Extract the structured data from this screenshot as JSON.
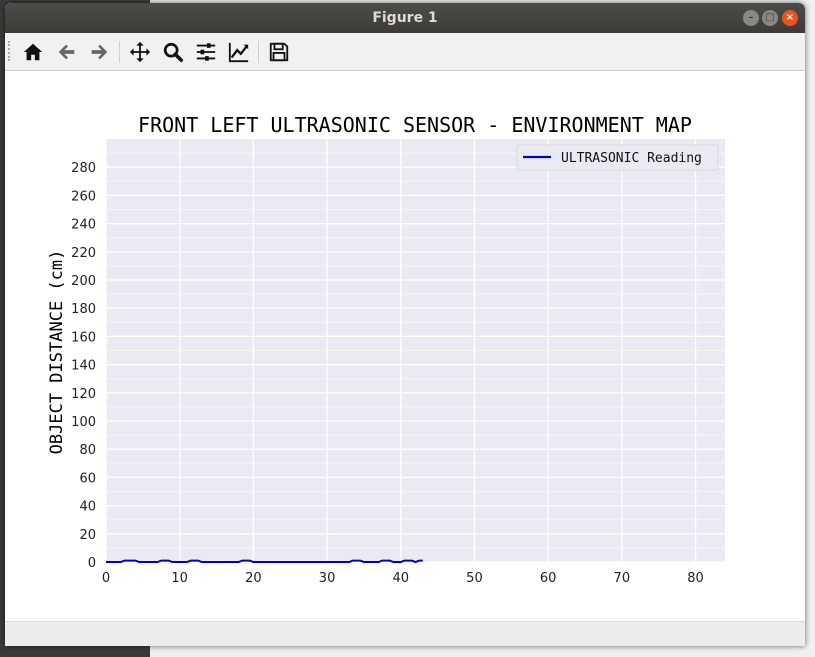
{
  "window": {
    "title": "Figure 1"
  },
  "toolbar": {
    "items": [
      {
        "name": "home-icon"
      },
      {
        "name": "back-arrow-icon"
      },
      {
        "name": "forward-arrow-icon"
      },
      {
        "name": "pan-move-icon"
      },
      {
        "name": "zoom-magnifier-icon"
      },
      {
        "name": "configure-subplots-icon"
      },
      {
        "name": "edit-axis-curves-icon"
      },
      {
        "name": "save-floppy-icon"
      }
    ]
  },
  "chart_data": {
    "type": "line",
    "title": "FRONT LEFT ULTRASONIC SENSOR - ENVIRONMENT MAP",
    "xlabel": "",
    "ylabel": "OBJECT DISTANCE (cm)",
    "xlim": [
      0,
      84
    ],
    "ylim": [
      0,
      300
    ],
    "xticks": [
      "0",
      "10",
      "20",
      "30",
      "40",
      "50",
      "60",
      "70",
      "80"
    ],
    "yticks": [
      "0",
      "20",
      "40",
      "60",
      "80",
      "100",
      "120",
      "140",
      "160",
      "180",
      "200",
      "220",
      "240",
      "260",
      "280"
    ],
    "grid": true,
    "legend": "top-right",
    "series": [
      {
        "name": "ULTRASONIC Reading",
        "color": "#0000cc",
        "x": [
          0,
          2,
          2.5,
          4,
          4.5,
          7,
          7.5,
          8.5,
          9,
          11,
          11.5,
          12.5,
          13,
          18,
          18.5,
          19.5,
          20,
          33,
          33.5,
          34.5,
          35,
          37,
          37.5,
          38.5,
          39,
          40,
          40.5,
          41.5,
          42,
          42.5,
          43
        ],
        "values": [
          0,
          0,
          1,
          1,
          0,
          0,
          1,
          1,
          0,
          0,
          1,
          1,
          0,
          0,
          1,
          1,
          0,
          0,
          1,
          1,
          0,
          0,
          1,
          1,
          0,
          0,
          1,
          1,
          0,
          1,
          1
        ]
      }
    ]
  }
}
